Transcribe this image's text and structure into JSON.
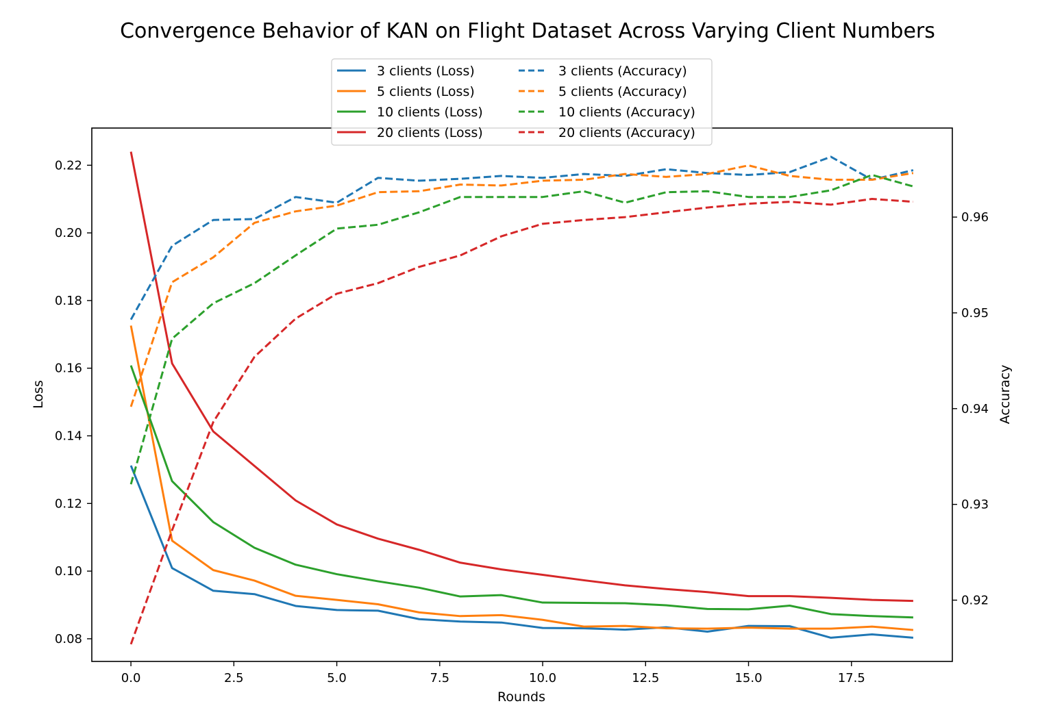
{
  "chart_data": {
    "type": "line",
    "title": "Convergence Behavior of KAN on Flight Dataset Across Varying Client Numbers",
    "xlabel": "Rounds",
    "ylabel_left": "Loss",
    "ylabel_right": "Accuracy",
    "xlim": [
      -0.95,
      19.95
    ],
    "ylim_left": [
      0.0733,
      0.231
    ],
    "ylim_right": [
      0.9136,
      0.9693
    ],
    "x_ticks": [
      0.0,
      2.5,
      5.0,
      7.5,
      10.0,
      12.5,
      15.0,
      17.5
    ],
    "x_tick_labels": [
      "0.0",
      "2.5",
      "5.0",
      "7.5",
      "10.0",
      "12.5",
      "15.0",
      "17.5"
    ],
    "y_left_ticks": [
      0.08,
      0.1,
      0.12,
      0.14,
      0.16,
      0.18,
      0.2,
      0.22
    ],
    "y_left_tick_labels": [
      "0.08",
      "0.10",
      "0.12",
      "0.14",
      "0.16",
      "0.18",
      "0.20",
      "0.22"
    ],
    "y_right_ticks": [
      0.92,
      0.93,
      0.94,
      0.95,
      0.96
    ],
    "y_right_tick_labels": [
      "0.92",
      "0.93",
      "0.94",
      "0.95",
      "0.96"
    ],
    "legend_position": "top-center",
    "x": [
      0,
      1,
      2,
      3,
      4,
      5,
      6,
      7,
      8,
      9,
      10,
      11,
      12,
      13,
      14,
      15,
      16,
      17,
      18,
      19
    ],
    "series": [
      {
        "name": "3 clients (Loss)",
        "axis": "left",
        "style": "solid",
        "color": "#1f77b4",
        "values": [
          0.1312,
          0.1009,
          0.0942,
          0.0932,
          0.0897,
          0.0885,
          0.0883,
          0.0858,
          0.0851,
          0.0848,
          0.0832,
          0.0831,
          0.0827,
          0.0834,
          0.0821,
          0.0838,
          0.0837,
          0.0803,
          0.0813,
          0.0803
        ]
      },
      {
        "name": "5 clients (Loss)",
        "axis": "left",
        "style": "solid",
        "color": "#ff7f0e",
        "values": [
          0.1726,
          0.109,
          0.1003,
          0.0972,
          0.0927,
          0.0915,
          0.0902,
          0.0878,
          0.0867,
          0.087,
          0.0856,
          0.0836,
          0.0838,
          0.0831,
          0.083,
          0.0833,
          0.083,
          0.083,
          0.0836,
          0.0826
        ]
      },
      {
        "name": "10 clients (Loss)",
        "axis": "left",
        "style": "solid",
        "color": "#2ca02c",
        "values": [
          0.1608,
          0.1266,
          0.1145,
          0.1069,
          0.1019,
          0.0991,
          0.097,
          0.0951,
          0.0925,
          0.0929,
          0.0907,
          0.0906,
          0.0905,
          0.0899,
          0.0888,
          0.0887,
          0.0898,
          0.0873,
          0.0867,
          0.0863
        ]
      },
      {
        "name": "20 clients (Loss)",
        "axis": "left",
        "style": "solid",
        "color": "#d62728",
        "values": [
          0.224,
          0.1614,
          0.1413,
          0.1311,
          0.1209,
          0.1138,
          0.1096,
          0.1063,
          0.1025,
          0.1005,
          0.0989,
          0.0973,
          0.0958,
          0.0947,
          0.0938,
          0.0926,
          0.0926,
          0.0921,
          0.0915,
          0.0912
        ]
      },
      {
        "name": "3 clients (Accuracy)",
        "axis": "right",
        "style": "dashed",
        "color": "#1f77b4",
        "values": [
          0.9493,
          0.957,
          0.9597,
          0.9598,
          0.9621,
          0.9615,
          0.9641,
          0.9638,
          0.964,
          0.9643,
          0.9641,
          0.9645,
          0.9643,
          0.965,
          0.9646,
          0.9644,
          0.9647,
          0.9663,
          0.9639,
          0.9649
        ]
      },
      {
        "name": "5 clients (Accuracy)",
        "axis": "right",
        "style": "dashed",
        "color": "#ff7f0e",
        "values": [
          0.9402,
          0.9532,
          0.9558,
          0.9594,
          0.9606,
          0.9612,
          0.9626,
          0.9627,
          0.9634,
          0.9633,
          0.9638,
          0.9639,
          0.9645,
          0.9642,
          0.9645,
          0.9654,
          0.9643,
          0.9639,
          0.9639,
          0.9646
        ]
      },
      {
        "name": "10 clients (Accuracy)",
        "axis": "right",
        "style": "dashed",
        "color": "#2ca02c",
        "values": [
          0.9321,
          0.9473,
          0.951,
          0.9531,
          0.956,
          0.9588,
          0.9592,
          0.9605,
          0.9621,
          0.9621,
          0.9621,
          0.9627,
          0.9615,
          0.9626,
          0.9627,
          0.9621,
          0.9621,
          0.9628,
          0.9644,
          0.9632
        ]
      },
      {
        "name": "20 clients (Accuracy)",
        "axis": "right",
        "style": "dashed",
        "color": "#d62728",
        "values": [
          0.9154,
          0.9273,
          0.9386,
          0.9454,
          0.9494,
          0.952,
          0.9531,
          0.9548,
          0.956,
          0.958,
          0.9593,
          0.9597,
          0.96,
          0.9605,
          0.961,
          0.9614,
          0.9616,
          0.9613,
          0.9619,
          0.9616
        ]
      }
    ]
  }
}
